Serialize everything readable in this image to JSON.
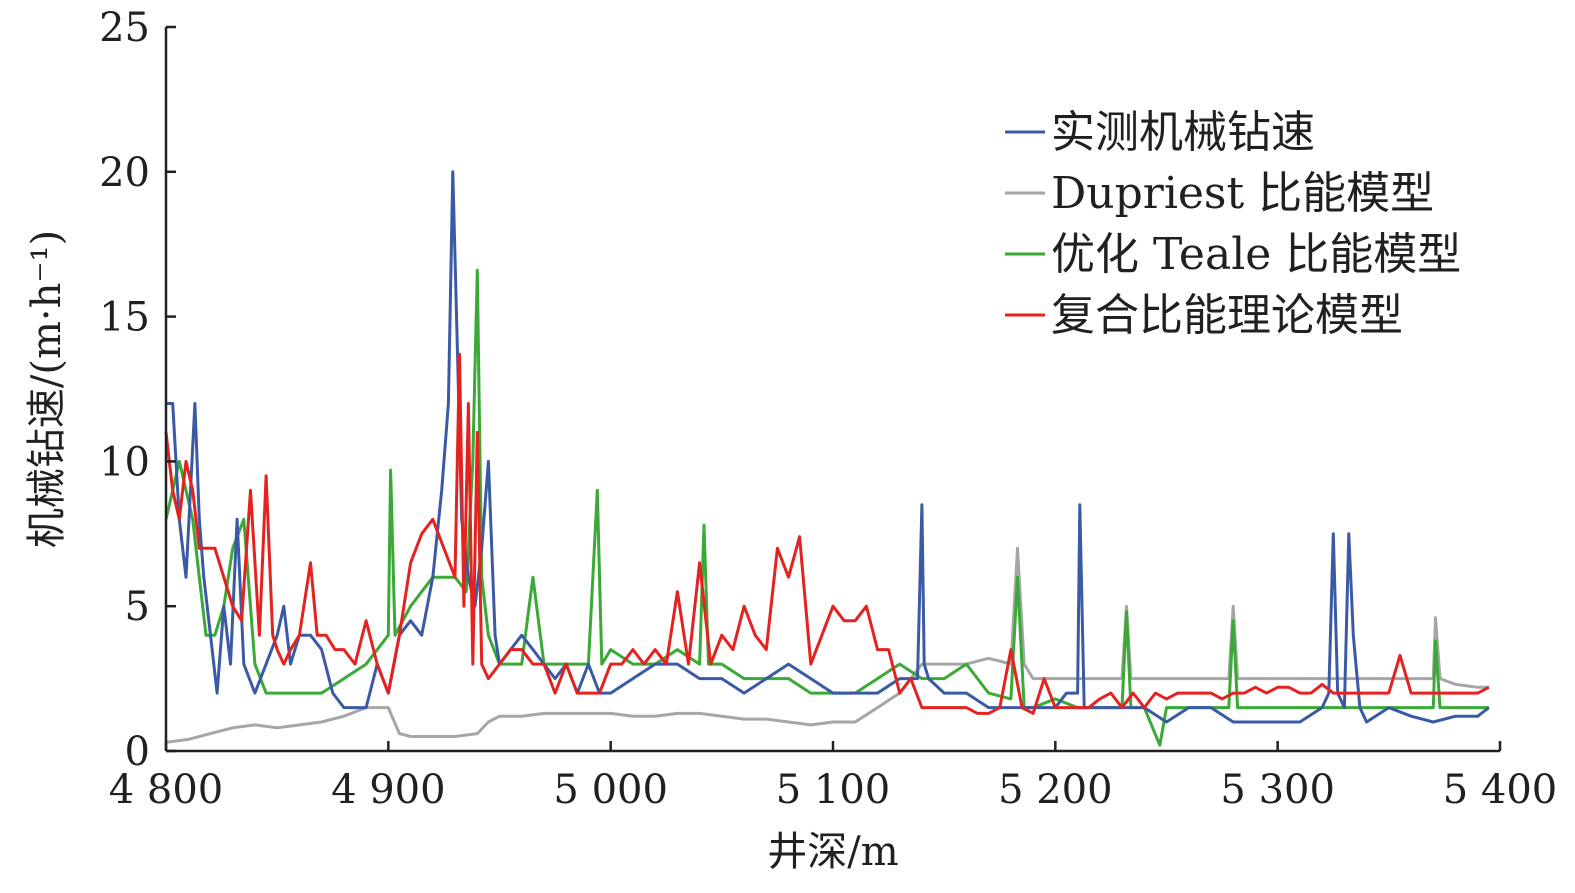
{
  "chart_data": {
    "type": "line",
    "xlabel": "井深/m",
    "ylabel": "机械钻速/(m·h⁻¹)",
    "xlim": [
      4800,
      5400
    ],
    "ylim": [
      0,
      25
    ],
    "x_ticks": [
      4800,
      4900,
      5000,
      5100,
      5200,
      5300,
      5400
    ],
    "x_tick_labels": [
      "4 800",
      "4 900",
      "5 000",
      "5 100",
      "5 200",
      "5 300",
      "5 400"
    ],
    "y_ticks": [
      0,
      5,
      10,
      15,
      20,
      25
    ],
    "y_tick_labels": [
      "0",
      "5",
      "10",
      "15",
      "20",
      "25"
    ],
    "grid": false,
    "legend_position": "top-right",
    "series": [
      {
        "name": "实测机械钻速",
        "color": "#3b5aa6",
        "x": [
          4800,
          4803,
          4806,
          4809,
          4811,
          4813,
          4815,
          4817,
          4820,
          4823,
          4826,
          4829,
          4832,
          4835,
          4840,
          4845,
          4850,
          4853,
          4856,
          4860,
          4865,
          4870,
          4875,
          4880,
          4885,
          4890,
          4895,
          4900,
          4905,
          4910,
          4915,
          4920,
          4924,
          4927,
          4928,
          4929,
          4931,
          4933,
          4936,
          4939,
          4942,
          4945,
          4948,
          4950,
          4955,
          4960,
          4965,
          4970,
          4975,
          4980,
          4985,
          4990,
          4995,
          5000,
          5010,
          5020,
          5030,
          5040,
          5050,
          5060,
          5070,
          5080,
          5090,
          5100,
          5110,
          5120,
          5130,
          5138,
          5140,
          5141,
          5143,
          5150,
          5160,
          5170,
          5180,
          5190,
          5200,
          5205,
          5210,
          5211,
          5213,
          5220,
          5230,
          5240,
          5250,
          5260,
          5270,
          5280,
          5290,
          5300,
          5310,
          5320,
          5323,
          5325,
          5327,
          5330,
          5332,
          5334,
          5337,
          5340,
          5350,
          5360,
          5370,
          5380,
          5390,
          5395
        ],
        "y": [
          12,
          12,
          8,
          6,
          9,
          12,
          8,
          6,
          4,
          2,
          5,
          3,
          8,
          3,
          2,
          3,
          4,
          5,
          3,
          4,
          4,
          3.5,
          2,
          1.5,
          1.5,
          1.5,
          3,
          2,
          4,
          4.5,
          4,
          6,
          9,
          12,
          16,
          20,
          14,
          8,
          6,
          5,
          7,
          10,
          4,
          3,
          3.5,
          4,
          3.5,
          3,
          2.5,
          3,
          2,
          3,
          2,
          2,
          2.5,
          3,
          3,
          2.5,
          2.5,
          2,
          2.5,
          3,
          2.5,
          2,
          2,
          2,
          2.5,
          2.5,
          8.5,
          3,
          2.5,
          2,
          2,
          1.5,
          1.5,
          1.5,
          1.5,
          2,
          2,
          8.5,
          1.5,
          1.5,
          1.5,
          1.5,
          1,
          1.5,
          1.5,
          1,
          1,
          1,
          1,
          1.5,
          2,
          7.5,
          2,
          1.5,
          7.5,
          4,
          1.5,
          1,
          1.5,
          1.2,
          1,
          1.2,
          1.2,
          1.5
        ]
      },
      {
        "name": "Dupriest 比能模型",
        "color": "#a6a6a6",
        "x": [
          4800,
          4810,
          4820,
          4830,
          4840,
          4850,
          4860,
          4870,
          4880,
          4890,
          4900,
          4905,
          4910,
          4920,
          4930,
          4940,
          4945,
          4950,
          4960,
          4970,
          4980,
          4990,
          5000,
          5010,
          5020,
          5030,
          5040,
          5050,
          5060,
          5070,
          5080,
          5090,
          5100,
          5110,
          5120,
          5130,
          5140,
          5150,
          5160,
          5170,
          5180,
          5183,
          5186,
          5190,
          5200,
          5210,
          5220,
          5230,
          5232,
          5234,
          5240,
          5250,
          5260,
          5270,
          5278,
          5280,
          5282,
          5290,
          5300,
          5310,
          5320,
          5330,
          5340,
          5350,
          5360,
          5370,
          5371,
          5373,
          5380,
          5390,
          5395
        ],
        "y": [
          0.3,
          0.4,
          0.6,
          0.8,
          0.9,
          0.8,
          0.9,
          1,
          1.2,
          1.5,
          1.5,
          0.6,
          0.5,
          0.5,
          0.5,
          0.6,
          1,
          1.2,
          1.2,
          1.3,
          1.3,
          1.3,
          1.3,
          1.2,
          1.2,
          1.3,
          1.3,
          1.2,
          1.1,
          1.1,
          1,
          0.9,
          1,
          1,
          1.5,
          2,
          3,
          3,
          3,
          3.2,
          3,
          7,
          3,
          2.5,
          2.5,
          2.5,
          2.5,
          2.5,
          5,
          2.5,
          2.5,
          2.5,
          2.5,
          2.5,
          2.5,
          5,
          2.5,
          2.5,
          2.5,
          2.5,
          2.5,
          2.5,
          2.5,
          2.5,
          2.5,
          2.5,
          4.6,
          2.5,
          2.3,
          2.2,
          2.2
        ]
      },
      {
        "name": "优化 Teale 比能模型",
        "color": "#3aa935",
        "x": [
          4800,
          4803,
          4806,
          4809,
          4812,
          4815,
          4818,
          4822,
          4826,
          4830,
          4835,
          4840,
          4845,
          4850,
          4860,
          4870,
          4880,
          4890,
          4900,
          4901,
          4903,
          4910,
          4915,
          4920,
          4925,
          4930,
          4935,
          4938,
          4940,
          4942,
          4945,
          4950,
          4960,
          4965,
          4970,
          4980,
          4990,
          4994,
          4996,
          5000,
          5010,
          5020,
          5030,
          5040,
          5042,
          5044,
          5050,
          5060,
          5070,
          5080,
          5090,
          5100,
          5110,
          5120,
          5130,
          5140,
          5150,
          5160,
          5170,
          5180,
          5183,
          5186,
          5190,
          5200,
          5210,
          5220,
          5230,
          5232,
          5234,
          5240,
          5247,
          5250,
          5260,
          5270,
          5278,
          5280,
          5282,
          5290,
          5300,
          5310,
          5320,
          5330,
          5340,
          5350,
          5360,
          5370,
          5371,
          5373,
          5380,
          5390,
          5395
        ],
        "y": [
          8,
          9,
          10,
          9,
          8,
          6,
          4,
          4,
          5,
          7,
          8,
          3,
          2,
          2,
          2,
          2,
          2.5,
          3,
          4,
          9.7,
          4,
          5,
          5.5,
          6,
          6,
          6,
          5.5,
          10,
          16.6,
          6,
          4,
          3,
          3,
          6,
          3,
          3,
          3,
          9,
          3,
          3.5,
          3,
          3,
          3.5,
          3,
          7.8,
          3,
          3,
          2.5,
          2.5,
          2.5,
          2,
          2,
          2,
          2.5,
          3,
          2.5,
          2.5,
          3,
          2,
          1.8,
          6,
          1.5,
          1.5,
          1.8,
          1.5,
          1.5,
          1.5,
          4.8,
          1.5,
          1.5,
          0.2,
          1.5,
          1.5,
          1.5,
          1.5,
          4.5,
          1.5,
          1.5,
          1.5,
          1.5,
          1.5,
          1.5,
          1.5,
          1.5,
          1.5,
          1.5,
          3.8,
          1.5,
          1.5,
          1.5,
          1.5
        ]
      },
      {
        "name": "复合比能理论模型",
        "color": "#e42320",
        "x": [
          4800,
          4803,
          4806,
          4809,
          4812,
          4815,
          4818,
          4822,
          4826,
          4830,
          4834,
          4838,
          4842,
          4845,
          4848,
          4850,
          4853,
          4856,
          4860,
          4865,
          4868,
          4872,
          4876,
          4880,
          4885,
          4890,
          4895,
          4900,
          4905,
          4910,
          4915,
          4920,
          4925,
          4930,
          4932,
          4934,
          4936,
          4938,
          4940,
          4942,
          4945,
          4950,
          4955,
          4960,
          4965,
          4970,
          4975,
          4980,
          4985,
          4990,
          4995,
          5000,
          5005,
          5010,
          5015,
          5020,
          5025,
          5030,
          5035,
          5040,
          5045,
          5050,
          5055,
          5060,
          5065,
          5070,
          5075,
          5080,
          5085,
          5090,
          5095,
          5100,
          5105,
          5110,
          5115,
          5120,
          5125,
          5130,
          5135,
          5140,
          5145,
          5150,
          5155,
          5160,
          5165,
          5170,
          5175,
          5180,
          5185,
          5190,
          5195,
          5200,
          5205,
          5210,
          5215,
          5220,
          5225,
          5230,
          5235,
          5240,
          5245,
          5250,
          5255,
          5260,
          5265,
          5270,
          5275,
          5280,
          5285,
          5290,
          5295,
          5300,
          5305,
          5310,
          5315,
          5320,
          5325,
          5330,
          5335,
          5340,
          5345,
          5350,
          5355,
          5360,
          5365,
          5370,
          5375,
          5380,
          5385,
          5390,
          5395
        ],
        "y": [
          11,
          9,
          8,
          10,
          9,
          7,
          7,
          7,
          6,
          5,
          4.5,
          9,
          4,
          9.5,
          4,
          3.5,
          3,
          3.5,
          4,
          6.5,
          4,
          4,
          3.5,
          3.5,
          3,
          4.5,
          3,
          2,
          4,
          6.5,
          7.5,
          8,
          7,
          6,
          13.7,
          5,
          12,
          3,
          11,
          3,
          2.5,
          3,
          3.5,
          3.5,
          3,
          3,
          2,
          3,
          2,
          2,
          2,
          3,
          3,
          3.5,
          3,
          3.5,
          3,
          5.5,
          3,
          6.5,
          3,
          4,
          3.5,
          5,
          4,
          3.5,
          7,
          6,
          7.4,
          3,
          4,
          5,
          4.5,
          4.5,
          5,
          3.5,
          3.5,
          2,
          2.5,
          1.5,
          1.5,
          1.5,
          1.5,
          1.5,
          1.3,
          1.3,
          1.5,
          3.5,
          1.5,
          1.3,
          2.5,
          1.5,
          1.5,
          1.5,
          1.5,
          1.8,
          2,
          1.5,
          2,
          1.5,
          2,
          1.8,
          2,
          2,
          2,
          2,
          1.8,
          2,
          2,
          2.2,
          2,
          2.2,
          2.2,
          2,
          2,
          2.3,
          2,
          2,
          2,
          2,
          2,
          2,
          3.3,
          2,
          2,
          2,
          2,
          2,
          2,
          2,
          2.2
        ]
      }
    ]
  }
}
